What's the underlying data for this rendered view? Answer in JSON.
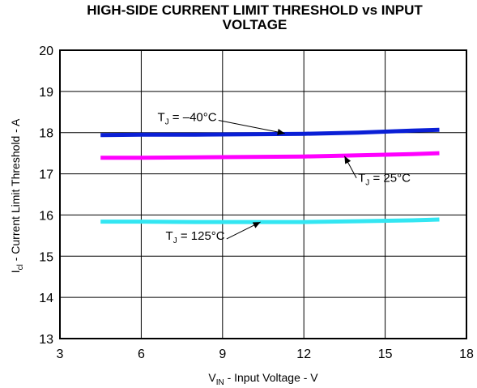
{
  "chart_data": {
    "type": "line",
    "title_line1": "HIGH-SIDE CURRENT LIMIT THRESHOLD vs INPUT",
    "title_line2": "VOLTAGE",
    "xlabel_main": "V",
    "xlabel_sub": "IN",
    "xlabel_rest": " - Input Voltage - V",
    "ylabel_main": "I",
    "ylabel_sub": "cl",
    "ylabel_rest": " - Current Limit Threshold - A",
    "xlim": [
      3,
      18
    ],
    "ylim": [
      13,
      20
    ],
    "xticks": [
      "3",
      "6",
      "9",
      "12",
      "15",
      "18"
    ],
    "yticks": [
      "13",
      "14",
      "15",
      "16",
      "17",
      "18",
      "19",
      "20"
    ],
    "grid": true,
    "series": [
      {
        "color": "#0a1fd6",
        "x": [
          4.5,
          6,
          8,
          10,
          12,
          14,
          16,
          17
        ],
        "y": [
          17.94,
          17.95,
          17.95,
          17.96,
          17.97,
          18.0,
          18.05,
          18.07
        ]
      },
      {
        "color": "#ff00ff",
        "x": [
          4.5,
          6,
          8,
          10,
          12,
          14,
          16,
          17
        ],
        "y": [
          17.39,
          17.39,
          17.4,
          17.41,
          17.42,
          17.45,
          17.48,
          17.5
        ]
      },
      {
        "color": "#33e6f2",
        "x": [
          4.5,
          6,
          8,
          10,
          12,
          14,
          16,
          17
        ],
        "y": [
          15.84,
          15.84,
          15.83,
          15.83,
          15.83,
          15.85,
          15.87,
          15.89
        ]
      }
    ],
    "annotations": [
      {
        "main": "T",
        "sub": "J",
        "rest": " = –40°C",
        "x": 6.6,
        "y": 18.28,
        "arrow_to": [
          11.3,
          17.98
        ]
      },
      {
        "main": "T",
        "sub": "J",
        "rest": " = 25°C",
        "x": 14.0,
        "y": 16.8,
        "arrow_to": [
          13.5,
          17.43
        ]
      },
      {
        "main": "T",
        "sub": "J",
        "rest": " = 125°C",
        "x": 6.9,
        "y": 15.4,
        "arrow_to": [
          10.4,
          15.83
        ]
      }
    ]
  }
}
